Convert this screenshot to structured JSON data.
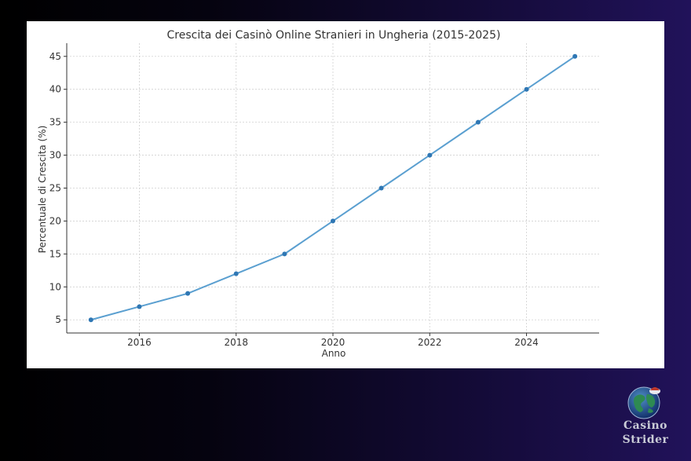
{
  "chart_data": {
    "type": "line",
    "title": "Crescita dei Casinò Online Stranieri in Ungheria (2015-2025)",
    "xlabel": "Anno",
    "ylabel": "Percentuale di Crescita (%)",
    "x": [
      2015,
      2016,
      2017,
      2018,
      2019,
      2020,
      2021,
      2022,
      2023,
      2024,
      2025
    ],
    "series": [
      {
        "values": [
          5,
          7,
          9,
          12,
          15,
          20,
          25,
          30,
          35,
          40,
          45
        ]
      }
    ],
    "xlim": [
      2014.5,
      2025.5
    ],
    "ylim": [
      3,
      47
    ],
    "xticks": [
      2016,
      2018,
      2020,
      2022,
      2024
    ],
    "yticks": [
      5,
      10,
      15,
      20,
      25,
      30,
      35,
      40,
      45
    ],
    "grid": true,
    "line_color": "#5a9fd0",
    "marker_color": "#2f77b4"
  },
  "watermark": {
    "line1": "Casino",
    "line2": "Strider"
  }
}
